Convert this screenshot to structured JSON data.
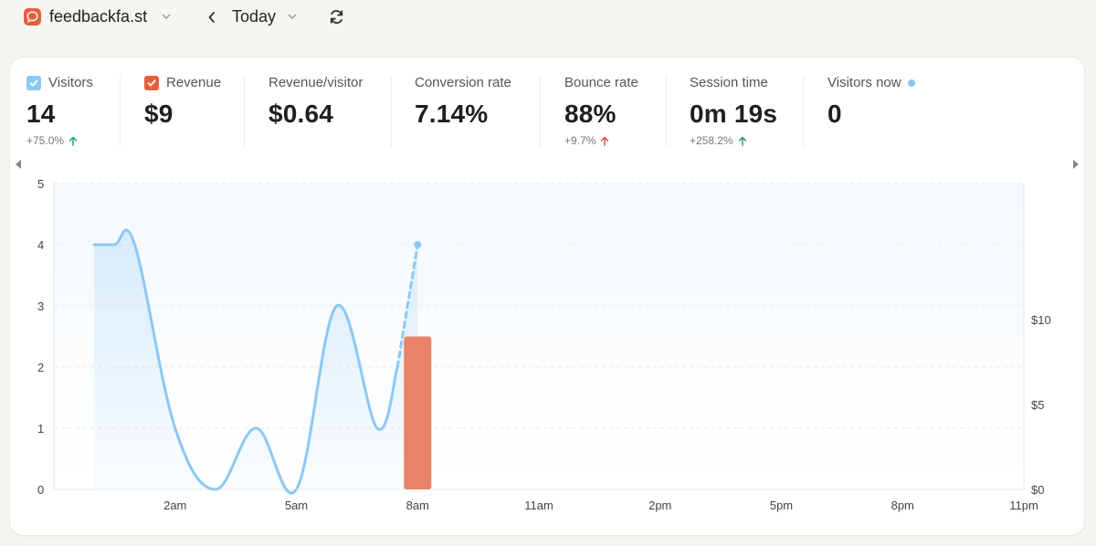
{
  "header": {
    "site_name": "feedbackfa.st",
    "period": "Today"
  },
  "metrics": [
    {
      "label": "Visitors",
      "value": "14",
      "change": "+75.0%",
      "trend": "up",
      "checkbox": "blue"
    },
    {
      "label": "Revenue",
      "value": "$9",
      "change": "",
      "trend": "",
      "checkbox": "orange"
    },
    {
      "label": "Revenue/visitor",
      "value": "$0.64",
      "change": "",
      "trend": ""
    },
    {
      "label": "Conversion rate",
      "value": "7.14%",
      "change": "",
      "trend": ""
    },
    {
      "label": "Bounce rate",
      "value": "88%",
      "change": "+9.7%",
      "trend": "up-bad"
    },
    {
      "label": "Session time",
      "value": "0m 19s",
      "change": "+258.2%",
      "trend": "up"
    },
    {
      "label": "Visitors now",
      "value": "0",
      "change": "",
      "trend": "",
      "live": true
    }
  ],
  "colors": {
    "visitors": "#8cc8f3",
    "revenue": "#e8826a",
    "up_good": "#22a35a",
    "up_bad": "#e5484d"
  },
  "chart_data": {
    "type": "line",
    "x_ticks": [
      "2am",
      "5am",
      "8am",
      "11am",
      "2pm",
      "5pm",
      "8pm",
      "11pm"
    ],
    "y_ticks": [
      "0",
      "1",
      "2",
      "3",
      "4",
      "5"
    ],
    "ylim": [
      0,
      5
    ],
    "right_ticks": [
      "$0",
      "$5",
      "$10"
    ],
    "right_ylim": [
      0,
      18
    ],
    "series": [
      {
        "name": "Visitors",
        "x": [
          0,
          0.5,
          1,
          2,
          3,
          4,
          5,
          6,
          7,
          7.5
        ],
        "values": [
          4,
          4,
          4,
          1,
          0,
          1,
          0,
          3,
          1,
          2
        ],
        "projected": {
          "x": [
            7.5,
            8
          ],
          "values": [
            2,
            4
          ]
        }
      },
      {
        "name": "Revenue",
        "type": "bar",
        "x": [
          8
        ],
        "values": [
          9
        ]
      }
    ],
    "x_range": [
      -1,
      23
    ]
  }
}
